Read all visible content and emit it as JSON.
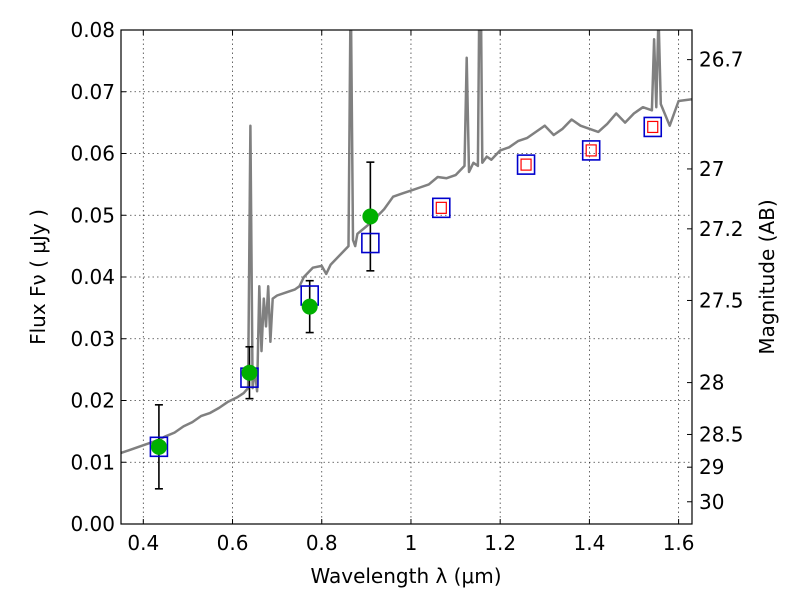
{
  "chart_data": {
    "type": "scatter",
    "xlabel": "Wavelength  λ (μm)",
    "ylabel": "Flux  Fν  ( μJy )",
    "ylabel_right": "Magnitude (AB)",
    "xlim": [
      0.35,
      1.63
    ],
    "ylim": [
      0.0,
      0.08
    ],
    "grid": true,
    "x_ticks": [
      {
        "value": 0.4,
        "label": "0.4"
      },
      {
        "value": 0.6,
        "label": "0.6"
      },
      {
        "value": 0.8,
        "label": "0.8"
      },
      {
        "value": 1.0,
        "label": "1"
      },
      {
        "value": 1.2,
        "label": "1.2"
      },
      {
        "value": 1.4,
        "label": "1.4"
      },
      {
        "value": 1.6,
        "label": "1.6"
      }
    ],
    "y_ticks": [
      {
        "value": 0.0,
        "label": "0.00"
      },
      {
        "value": 0.01,
        "label": "0.01"
      },
      {
        "value": 0.02,
        "label": "0.02"
      },
      {
        "value": 0.03,
        "label": "0.03"
      },
      {
        "value": 0.04,
        "label": "0.04"
      },
      {
        "value": 0.05,
        "label": "0.05"
      },
      {
        "value": 0.06,
        "label": "0.06"
      },
      {
        "value": 0.07,
        "label": "0.07"
      },
      {
        "value": 0.08,
        "label": "0.08"
      }
    ],
    "right_ticks": [
      {
        "flux": 0.0752,
        "label": "26.7"
      },
      {
        "flux": 0.0575,
        "label": "27"
      },
      {
        "flux": 0.0478,
        "label": "27.2"
      },
      {
        "flux": 0.0362,
        "label": "27.5"
      },
      {
        "flux": 0.0229,
        "label": "28"
      },
      {
        "flux": 0.0145,
        "label": "28.5"
      },
      {
        "flux": 0.0092,
        "label": "29"
      },
      {
        "flux": 0.0036,
        "label": "30"
      }
    ],
    "colors": {
      "spectrum": "#808080",
      "observed": "#00b000",
      "error_bar": "#000000",
      "model_box": "#0000cc",
      "model_inner": "#ff0000"
    },
    "spectrum": {
      "x": [
        0.35,
        0.37,
        0.39,
        0.41,
        0.43,
        0.45,
        0.47,
        0.49,
        0.51,
        0.53,
        0.55,
        0.57,
        0.59,
        0.61,
        0.625,
        0.635,
        0.64,
        0.645,
        0.65,
        0.655,
        0.66,
        0.665,
        0.67,
        0.675,
        0.68,
        0.685,
        0.69,
        0.7,
        0.72,
        0.74,
        0.75,
        0.76,
        0.78,
        0.8,
        0.81,
        0.82,
        0.84,
        0.86,
        0.865,
        0.87,
        0.875,
        0.88,
        0.9,
        0.92,
        0.94,
        0.96,
        0.98,
        1.0,
        1.02,
        1.04,
        1.06,
        1.08,
        1.1,
        1.12,
        1.125,
        1.13,
        1.14,
        1.15,
        1.155,
        1.16,
        1.17,
        1.18,
        1.2,
        1.22,
        1.24,
        1.26,
        1.28,
        1.3,
        1.32,
        1.34,
        1.36,
        1.38,
        1.4,
        1.42,
        1.44,
        1.46,
        1.48,
        1.5,
        1.52,
        1.54,
        1.545,
        1.55,
        1.555,
        1.56,
        1.58,
        1.6,
        1.63
      ],
      "y": [
        0.0115,
        0.012,
        0.0125,
        0.013,
        0.0135,
        0.0142,
        0.0148,
        0.0158,
        0.0165,
        0.0175,
        0.018,
        0.0188,
        0.0198,
        0.0205,
        0.0212,
        0.022,
        0.0645,
        0.022,
        0.025,
        0.0215,
        0.0385,
        0.028,
        0.0365,
        0.032,
        0.0385,
        0.0295,
        0.0365,
        0.037,
        0.0375,
        0.038,
        0.0385,
        0.04,
        0.0415,
        0.0418,
        0.0405,
        0.042,
        0.0435,
        0.045,
        0.088,
        0.046,
        0.045,
        0.047,
        0.0482,
        0.0495,
        0.051,
        0.053,
        0.0535,
        0.054,
        0.0545,
        0.055,
        0.0562,
        0.056,
        0.0565,
        0.058,
        0.0755,
        0.057,
        0.0585,
        0.058,
        0.1,
        0.0585,
        0.0595,
        0.059,
        0.0605,
        0.061,
        0.062,
        0.0625,
        0.0635,
        0.0645,
        0.063,
        0.064,
        0.0655,
        0.0645,
        0.064,
        0.0635,
        0.0648,
        0.0665,
        0.065,
        0.0665,
        0.0675,
        0.067,
        0.0785,
        0.0675,
        0.0825,
        0.068,
        0.0645,
        0.0685,
        0.0688
      ]
    },
    "observed": [
      {
        "x": 0.435,
        "y": 0.0125,
        "err": 0.0068
      },
      {
        "x": 0.638,
        "y": 0.0245,
        "err": 0.0042
      },
      {
        "x": 0.773,
        "y": 0.0352,
        "err": 0.0042
      },
      {
        "x": 0.909,
        "y": 0.0498,
        "err": 0.0088
      }
    ],
    "model": [
      {
        "x": 0.435,
        "y": 0.0125,
        "inner": false
      },
      {
        "x": 0.638,
        "y": 0.0237,
        "inner": false
      },
      {
        "x": 0.773,
        "y": 0.037,
        "inner": false
      },
      {
        "x": 0.909,
        "y": 0.0455,
        "inner": false
      },
      {
        "x": 1.068,
        "y": 0.0512,
        "inner": true
      },
      {
        "x": 1.258,
        "y": 0.0582,
        "inner": true
      },
      {
        "x": 1.404,
        "y": 0.0605,
        "inner": true
      },
      {
        "x": 1.542,
        "y": 0.0643,
        "inner": true
      }
    ]
  }
}
